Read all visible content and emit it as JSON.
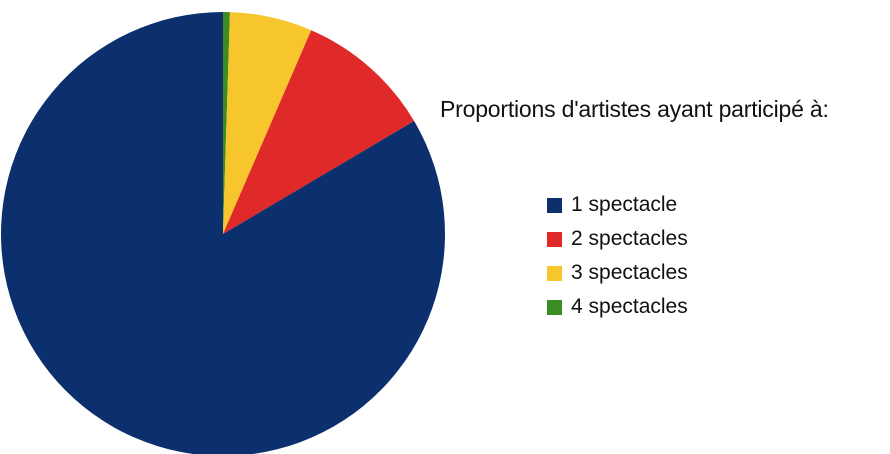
{
  "chart_data": {
    "type": "pie",
    "legend_title": "Proportions d'artistes ayant participé à:",
    "legend_position": "right",
    "slices": [
      {
        "label": "1 spectacle",
        "value": 83.5,
        "color": "#0c2f6d"
      },
      {
        "label": "2 spectacles",
        "value": 10.0,
        "color": "#e02a2a"
      },
      {
        "label": "3 spectacles",
        "value": 6.0,
        "color": "#f7c62c"
      },
      {
        "label": "4 spectacles",
        "value": 0.5,
        "color": "#3c8c24"
      }
    ]
  }
}
